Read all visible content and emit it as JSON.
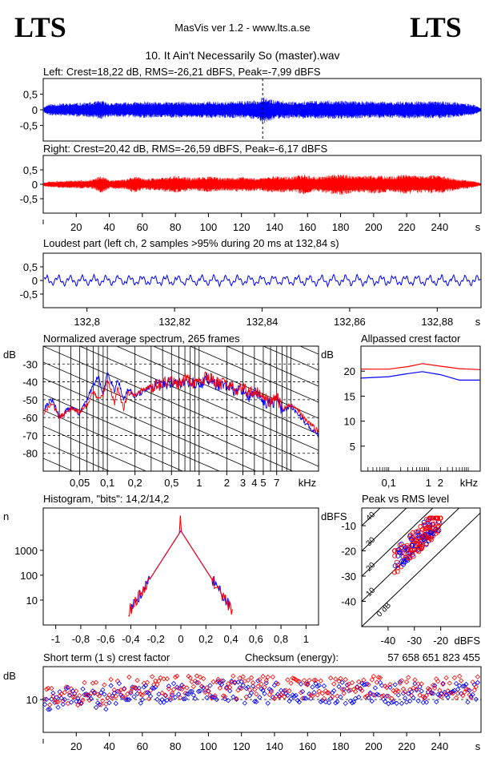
{
  "header": {
    "logo_left": "LTS",
    "logo_right": "LTS",
    "app_title": "MasVis ver 1.2 - www.lts.a.se",
    "track_title": "10. It Ain't Necessarily So (master).wav"
  },
  "colors": {
    "left": "#0000ff",
    "right": "#ff0000",
    "grid": "#000000"
  },
  "chart_data": [
    {
      "id": "waveform-left",
      "type": "line",
      "title": "Left: Crest=18,22 dB, RMS=-26,21 dBFS, Peak=-7,99 dBFS",
      "crest_db": 18.22,
      "rms_dbfs": -26.21,
      "peak_dbfs": -7.99,
      "y_ticks": [
        "0,5",
        "0",
        "-0,5"
      ],
      "y_tick_values": [
        0.5,
        0,
        -0.5
      ],
      "ylim": [
        -1,
        1
      ],
      "xlim": [
        0,
        265
      ],
      "marker_x": 132.84,
      "envelope": [
        [
          0,
          0.08
        ],
        [
          3,
          0.18
        ],
        [
          10,
          0.2
        ],
        [
          20,
          0.22
        ],
        [
          30,
          0.25
        ],
        [
          35,
          0.3
        ],
        [
          40,
          0.22
        ],
        [
          50,
          0.24
        ],
        [
          60,
          0.26
        ],
        [
          70,
          0.24
        ],
        [
          80,
          0.26
        ],
        [
          90,
          0.25
        ],
        [
          100,
          0.27
        ],
        [
          110,
          0.26
        ],
        [
          120,
          0.28
        ],
        [
          130,
          0.3
        ],
        [
          132.84,
          0.45
        ],
        [
          140,
          0.3
        ],
        [
          150,
          0.27
        ],
        [
          160,
          0.28
        ],
        [
          170,
          0.3
        ],
        [
          180,
          0.29
        ],
        [
          190,
          0.28
        ],
        [
          200,
          0.27
        ],
        [
          210,
          0.26
        ],
        [
          220,
          0.28
        ],
        [
          230,
          0.27
        ],
        [
          240,
          0.28
        ],
        [
          250,
          0.24
        ],
        [
          260,
          0.18
        ],
        [
          265,
          0.05
        ]
      ]
    },
    {
      "id": "waveform-right",
      "type": "line",
      "title": "Right: Crest=20,42 dB, RMS=-26,59 dBFS, Peak=-6,17 dBFS",
      "crest_db": 20.42,
      "rms_dbfs": -26.59,
      "peak_dbfs": -6.17,
      "y_ticks": [
        "0,5",
        "0",
        "-0,5"
      ],
      "y_tick_values": [
        0.5,
        0,
        -0.5
      ],
      "ylim": [
        -1,
        1
      ],
      "xlim": [
        0,
        265
      ],
      "x_ticks": [
        "20",
        "40",
        "60",
        "80",
        "100",
        "120",
        "140",
        "160",
        "180",
        "200",
        "220",
        "240",
        "s"
      ],
      "x_tick_values": [
        20,
        40,
        60,
        80,
        100,
        120,
        140,
        160,
        180,
        200,
        220,
        240
      ],
      "envelope": [
        [
          0,
          0.06
        ],
        [
          3,
          0.1
        ],
        [
          10,
          0.12
        ],
        [
          20,
          0.14
        ],
        [
          30,
          0.16
        ],
        [
          35,
          0.32
        ],
        [
          40,
          0.15
        ],
        [
          50,
          0.18
        ],
        [
          55,
          0.3
        ],
        [
          60,
          0.2
        ],
        [
          70,
          0.22
        ],
        [
          80,
          0.3
        ],
        [
          90,
          0.22
        ],
        [
          100,
          0.28
        ],
        [
          110,
          0.22
        ],
        [
          120,
          0.26
        ],
        [
          130,
          0.22
        ],
        [
          140,
          0.3
        ],
        [
          150,
          0.26
        ],
        [
          158,
          0.35
        ],
        [
          165,
          0.26
        ],
        [
          170,
          0.3
        ],
        [
          180,
          0.38
        ],
        [
          190,
          0.28
        ],
        [
          200,
          0.32
        ],
        [
          210,
          0.28
        ],
        [
          220,
          0.34
        ],
        [
          230,
          0.3
        ],
        [
          240,
          0.32
        ],
        [
          250,
          0.2
        ],
        [
          260,
          0.12
        ],
        [
          265,
          0.04
        ]
      ]
    },
    {
      "id": "loudest-part",
      "type": "line",
      "title": "Loudest part (left  ch, 2 samples >95% during 20 ms at 132,84 s)",
      "y_ticks": [
        "0,5",
        "0",
        "-0,5"
      ],
      "y_tick_values": [
        0.5,
        0,
        -0.5
      ],
      "ylim": [
        -1,
        1
      ],
      "xlim": [
        132.79,
        132.89
      ],
      "x_ticks": [
        "132,8",
        "132,82",
        "132,84",
        "132,86",
        "132,88",
        "s"
      ],
      "x_tick_values": [
        132.8,
        132.82,
        132.84,
        132.86,
        132.88
      ]
    },
    {
      "id": "spectrum",
      "type": "line",
      "title": "Normalized average spectrum, 265 frames",
      "ylabel": "dB",
      "y_ticks": [
        "-30",
        "-40",
        "-50",
        "-60",
        "-70",
        "-80"
      ],
      "y_tick_values": [
        -30,
        -40,
        -50,
        -60,
        -70,
        -80
      ],
      "ylim": [
        -90,
        -20
      ],
      "xlim_khz": [
        0.02,
        20
      ],
      "xscale": "log",
      "x_ticks": [
        "0,05",
        "0,1",
        "0,2",
        "0,5",
        "1",
        "2",
        "3",
        "4",
        "5",
        "7",
        "kHz"
      ],
      "x_tick_values": [
        0.05,
        0.1,
        0.2,
        0.5,
        1,
        2,
        3,
        4,
        5,
        7
      ],
      "series": [
        {
          "color": "#0000ff",
          "points": [
            [
              0.02,
              -55
            ],
            [
              0.025,
              -50
            ],
            [
              0.03,
              -60
            ],
            [
              0.04,
              -54
            ],
            [
              0.05,
              -58
            ],
            [
              0.06,
              -50
            ],
            [
              0.07,
              -42
            ],
            [
              0.08,
              -37
            ],
            [
              0.09,
              -48
            ],
            [
              0.1,
              -34
            ],
            [
              0.12,
              -45
            ],
            [
              0.13,
              -38
            ],
            [
              0.15,
              -50
            ],
            [
              0.17,
              -44
            ],
            [
              0.2,
              -48
            ],
            [
              0.25,
              -45
            ],
            [
              0.3,
              -43
            ],
            [
              0.4,
              -41
            ],
            [
              0.5,
              -40
            ],
            [
              0.6,
              -42
            ],
            [
              0.7,
              -39
            ],
            [
              0.8,
              -40
            ],
            [
              1,
              -42
            ],
            [
              1.2,
              -38
            ],
            [
              1.5,
              -41
            ],
            [
              2,
              -43
            ],
            [
              2.5,
              -45
            ],
            [
              3,
              -44
            ],
            [
              3.5,
              -49
            ],
            [
              4,
              -46
            ],
            [
              5,
              -50
            ],
            [
              6,
              -53
            ],
            [
              7,
              -50
            ],
            [
              8,
              -56
            ],
            [
              10,
              -54
            ],
            [
              12,
              -58
            ],
            [
              15,
              -64
            ],
            [
              20,
              -70
            ]
          ]
        },
        {
          "color": "#ff0000",
          "points": [
            [
              0.02,
              -58
            ],
            [
              0.025,
              -52
            ],
            [
              0.03,
              -60
            ],
            [
              0.04,
              -55
            ],
            [
              0.05,
              -57
            ],
            [
              0.06,
              -53
            ],
            [
              0.07,
              -45
            ],
            [
              0.08,
              -50
            ],
            [
              0.09,
              -47
            ],
            [
              0.1,
              -38
            ],
            [
              0.12,
              -52
            ],
            [
              0.13,
              -43
            ],
            [
              0.15,
              -55
            ],
            [
              0.17,
              -46
            ],
            [
              0.2,
              -47
            ],
            [
              0.25,
              -44
            ],
            [
              0.3,
              -43
            ],
            [
              0.4,
              -41
            ],
            [
              0.5,
              -39
            ],
            [
              0.6,
              -41
            ],
            [
              0.7,
              -38
            ],
            [
              0.8,
              -40
            ],
            [
              1,
              -41
            ],
            [
              1.2,
              -37
            ],
            [
              1.5,
              -40
            ],
            [
              2,
              -42
            ],
            [
              2.5,
              -44
            ],
            [
              3,
              -43
            ],
            [
              3.5,
              -47
            ],
            [
              4,
              -45
            ],
            [
              5,
              -49
            ],
            [
              6,
              -51
            ],
            [
              7,
              -48
            ],
            [
              8,
              -55
            ],
            [
              10,
              -53
            ],
            [
              12,
              -56
            ],
            [
              15,
              -62
            ],
            [
              20,
              -68
            ]
          ]
        }
      ]
    },
    {
      "id": "allpassed-crest",
      "type": "line",
      "title": "Allpassed crest factor",
      "ylabel": "dB",
      "y_ticks": [
        "20",
        "15",
        "10",
        "5"
      ],
      "y_tick_values": [
        20,
        15,
        10,
        5
      ],
      "ylim": [
        0,
        25
      ],
      "xlim_khz": [
        0.02,
        20
      ],
      "xscale": "log",
      "x_ticks": [
        "0,1",
        "1",
        "2",
        "kHz"
      ],
      "x_tick_values": [
        0.1,
        1,
        2
      ],
      "series": [
        {
          "color": "#ff0000",
          "points": [
            [
              0.02,
              20.4
            ],
            [
              0.1,
              20.4
            ],
            [
              0.3,
              20.9
            ],
            [
              0.7,
              21.5
            ],
            [
              2,
              21.0
            ],
            [
              6,
              20.5
            ],
            [
              20,
              20.3
            ]
          ]
        },
        {
          "color": "#0000ff",
          "points": [
            [
              0.02,
              18.6
            ],
            [
              0.1,
              18.9
            ],
            [
              0.3,
              19.5
            ],
            [
              0.7,
              19.9
            ],
            [
              2,
              19.3
            ],
            [
              6,
              18.2
            ],
            [
              20,
              18.2
            ]
          ]
        }
      ]
    },
    {
      "id": "histogram",
      "type": "line",
      "title": "Histogram, \"bits\": 14,2/14,2",
      "ylabel": "n",
      "y_ticks": [
        "1000",
        "100",
        "10"
      ],
      "y_tick_values": [
        1000,
        100,
        10
      ],
      "yscale": "log",
      "ylim": [
        1,
        50000
      ],
      "xlim": [
        -1.1,
        1.1
      ],
      "x_ticks": [
        "-1",
        "-0,8",
        "-0,6",
        "-0,4",
        "-0,2",
        "0",
        "0,2",
        "0,4",
        "0,6",
        "0,8",
        "1"
      ],
      "x_tick_values": [
        -1,
        -0.8,
        -0.6,
        -0.4,
        -0.2,
        0,
        0.2,
        0.4,
        0.6,
        0.8,
        1
      ],
      "peak_counts": [
        6000,
        25000
      ]
    },
    {
      "id": "peak-vs-rms",
      "type": "scatter",
      "title": "Peak vs RMS level",
      "ylabel": "dBFS",
      "xlabel": "dBFS",
      "y_ticks": [
        "-10",
        "-20",
        "-30",
        "-40"
      ],
      "y_tick_values": [
        -10,
        -20,
        -30,
        -40
      ],
      "x_ticks": [
        "-40",
        "-30",
        "-20"
      ],
      "x_tick_values": [
        -40,
        -30,
        -20
      ],
      "xlim": [
        -50,
        -5
      ],
      "ylim": [
        -50,
        -3
      ],
      "diagonals": [
        {
          "label": "40",
          "offset_db": 40
        },
        {
          "label": "30",
          "offset_db": 30
        },
        {
          "label": "20",
          "offset_db": 20
        },
        {
          "label": "10",
          "offset_db": 10
        },
        {
          "label": "0 dB",
          "offset_db": 0
        }
      ],
      "cluster": {
        "rms_range": [
          -38,
          -20
        ],
        "peak_range": [
          -30,
          -7
        ]
      }
    },
    {
      "id": "short-term-crest",
      "type": "scatter",
      "title": "Short term (1 s) crest factor",
      "ylabel": "dB",
      "y_ticks": [
        "10"
      ],
      "y_tick_values": [
        10
      ],
      "ylim": [
        0,
        20
      ],
      "xlim": [
        0,
        265
      ],
      "dashed_lines": [
        10,
        20
      ],
      "x_ticks": [
        "20",
        "40",
        "60",
        "80",
        "100",
        "120",
        "140",
        "160",
        "180",
        "200",
        "220",
        "240",
        "s"
      ],
      "x_tick_values": [
        20,
        40,
        60,
        80,
        100,
        120,
        140,
        160,
        180,
        200,
        220,
        240
      ]
    }
  ],
  "checksum": {
    "label": "Checksum (energy):",
    "value": "57 658 651 823 455"
  }
}
